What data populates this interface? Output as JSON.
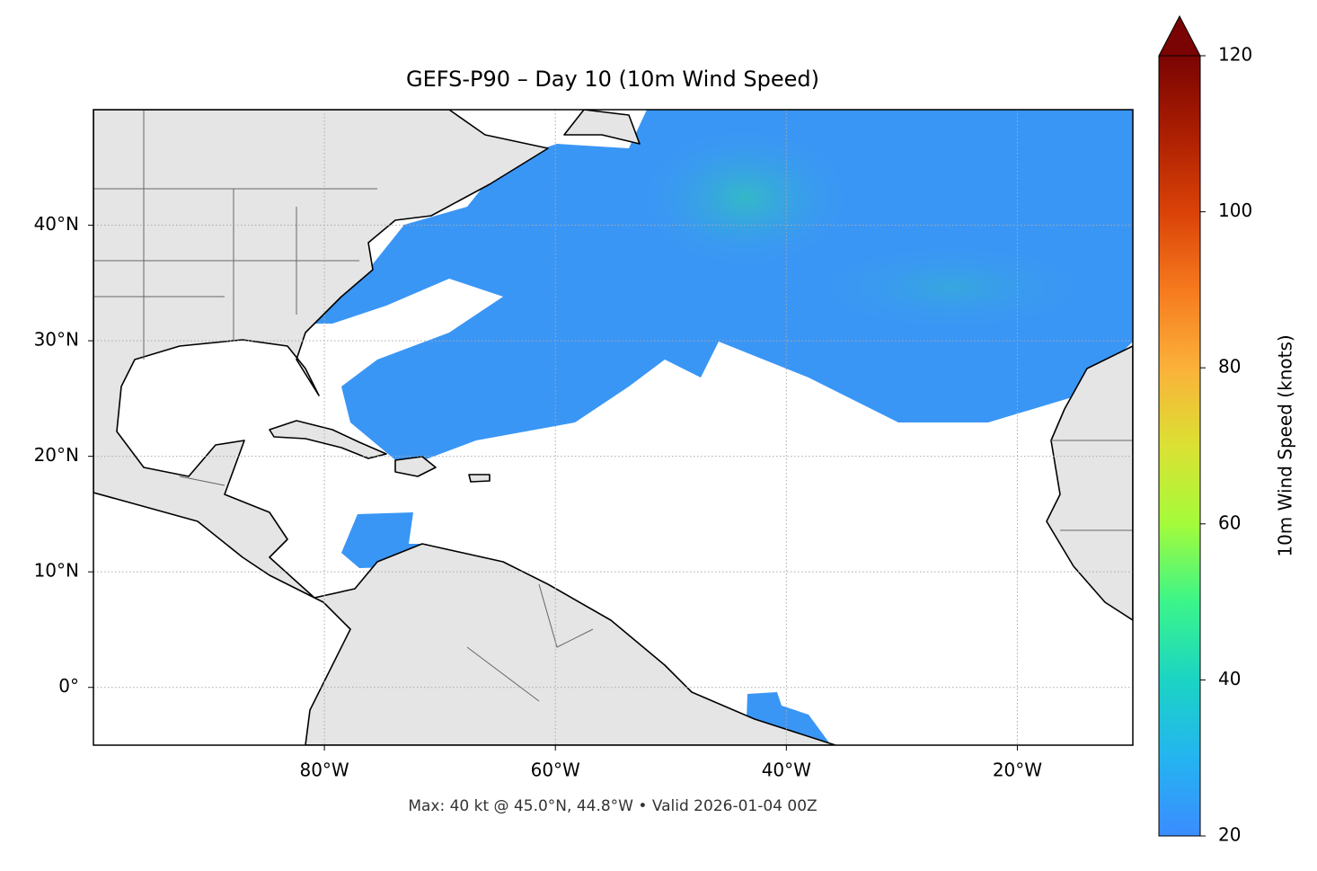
{
  "chart_data": {
    "type": "map",
    "title": "GEFS-P90 – Day 10 (10m Wind Speed)",
    "footnote": "Max: 40 kt @ 45.0°N, 44.8°W • Valid 2026-01-04 00Z",
    "xlim": [
      -100,
      -10
    ],
    "ylim": [
      -5,
      50
    ],
    "xticks": [
      {
        "value": -80,
        "label": "80°W"
      },
      {
        "value": -60,
        "label": "60°W"
      },
      {
        "value": -40,
        "label": "40°W"
      },
      {
        "value": -20,
        "label": "20°W"
      }
    ],
    "yticks": [
      {
        "value": 0,
        "label": "0°"
      },
      {
        "value": 10,
        "label": "10°N"
      },
      {
        "value": 20,
        "label": "20°N"
      },
      {
        "value": 30,
        "label": "30°N"
      },
      {
        "value": 40,
        "label": "40°N"
      }
    ],
    "grid": true,
    "colorbar": {
      "label": "10m Wind Speed (knots)",
      "lim": [
        20,
        120
      ],
      "ticks": [
        20,
        40,
        60,
        80,
        100,
        120
      ],
      "extend": "max"
    }
  }
}
